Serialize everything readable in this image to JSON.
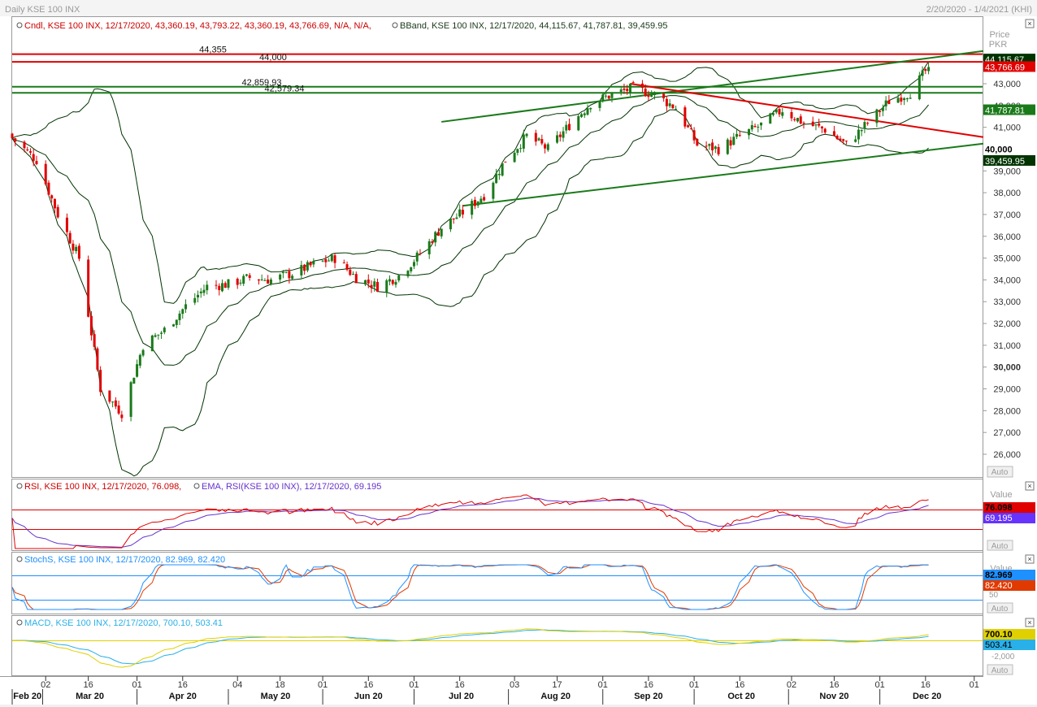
{
  "window": {
    "title": "Daily KSE 100 INX",
    "range": "2/20/2020 - 1/4/2021 (KHI)"
  },
  "colors": {
    "up": "#1a7a1a",
    "down": "#e00000",
    "bband": "#003300",
    "rsi": "#e00000",
    "rsi_ema": "#6633cc",
    "stoch_k": "#1e90ff",
    "stoch_d": "#e03a00",
    "macd": "#e0d000",
    "macd_signal": "#2ab0e8",
    "hline_red": "#e00000",
    "hline_green": "#1a7a1a"
  },
  "price_panel": {
    "legend_candle": "Cndl, KSE 100 INX, 12/17/2020, 43,360.19, 43,793.22, 43,360.19, 43,766.69, N/A, N/A,",
    "legend_bband": "BBand, KSE 100 INX, 12/17/2020, 44,115.67, 41,787.81, 39,459.95",
    "axis_title_1": "Price",
    "axis_title_2": "PKR",
    "auto_label": "Auto",
    "y_ticks": [
      "43,000",
      "42,000",
      "41,000",
      "40,000",
      "39,000",
      "38,000",
      "37,000",
      "36,000",
      "35,000",
      "34,000",
      "33,000",
      "32,000",
      "31,000",
      "30,000",
      "29,000",
      "28,000",
      "27,000",
      "26,000"
    ],
    "y_tick_values": [
      43000,
      42000,
      41000,
      40000,
      39000,
      38000,
      37000,
      36000,
      35000,
      34000,
      33000,
      32000,
      31000,
      30000,
      29000,
      28000,
      27000,
      26000
    ],
    "h_lines": [
      {
        "label": "44,355",
        "value": 44355,
        "color": "red"
      },
      {
        "label": "44,000",
        "value": 44000,
        "color": "red"
      },
      {
        "label": "42,859.93",
        "value": 42859.93,
        "color": "green"
      },
      {
        "label": "42,579.34",
        "value": 42579.34,
        "color": "green"
      }
    ],
    "badges": [
      {
        "text": "44,115.67",
        "value": 44115.67,
        "bg": "#003300"
      },
      {
        "text": "43,766.69",
        "value": 43766.69,
        "bg": "#e00000"
      },
      {
        "text": "41,787.81",
        "value": 41787.81,
        "bg": "#1a7a1a"
      },
      {
        "text": "40,000",
        "value": 40000,
        "bg": "#ffffff"
      },
      {
        "text": "39,459.95",
        "value": 39459.95,
        "bg": "#003300"
      }
    ]
  },
  "rsi_panel": {
    "legend_rsi": "RSI, KSE 100 INX, 12/17/2020, 76.098,",
    "legend_ema": "EMA, RSI(KSE 100 INX), 12/17/2020, 69.195",
    "axis_title": "Value",
    "auto_label": "Auto",
    "badge_rsi": "76.098",
    "badge_ema": "69.195"
  },
  "stoch_panel": {
    "legend": "StochS, KSE 100 INX, 12/17/2020, 82.969, 82.420",
    "axis_title": "Value",
    "tick_50": "50",
    "auto_label": "Auto",
    "badge_k": "82.969",
    "badge_d": "82.420"
  },
  "macd_panel": {
    "legend": "MACD, KSE 100 INX, 12/17/2020, 700.10, 503.41",
    "tick": "-2,000",
    "auto_label": "Auto",
    "badge_macd": "700.10",
    "badge_signal": "503.41"
  },
  "x_axis": {
    "day_ticks": [
      "02",
      "16",
      "01",
      "16",
      "04",
      "18",
      "01",
      "16",
      "01",
      "16",
      "03",
      "17",
      "01",
      "16",
      "01",
      "16",
      "02",
      "16",
      "01",
      "16",
      "01"
    ],
    "months": [
      "Feb 20",
      "Mar 20",
      "Apr 20",
      "May 20",
      "Jun 20",
      "Jul 20",
      "Aug 20",
      "Sep 20",
      "Oct 20",
      "Nov 20",
      "Dec 20"
    ]
  },
  "chart_data": [
    {
      "type": "candlestick",
      "title": "Daily KSE 100 INX",
      "x_range": [
        "2020-02-20",
        "2021-01-04"
      ],
      "y_unit": "PKR",
      "ylim": [
        25000,
        45200
      ],
      "series": [
        {
          "name": "KSE 100 INX (weekly close approx.)",
          "x": [
            "2020-02-20",
            "2020-02-28",
            "2020-03-06",
            "2020-03-13",
            "2020-03-20",
            "2020-03-27",
            "2020-04-03",
            "2020-04-10",
            "2020-04-17",
            "2020-04-24",
            "2020-05-01",
            "2020-05-08",
            "2020-05-15",
            "2020-05-22",
            "2020-05-29",
            "2020-06-05",
            "2020-06-12",
            "2020-06-19",
            "2020-06-26",
            "2020-07-03",
            "2020-07-10",
            "2020-07-17",
            "2020-07-24",
            "2020-07-31",
            "2020-08-07",
            "2020-08-14",
            "2020-08-21",
            "2020-08-28",
            "2020-09-04",
            "2020-09-11",
            "2020-09-18",
            "2020-09-25",
            "2020-10-02",
            "2020-10-09",
            "2020-10-16",
            "2020-10-23",
            "2020-10-30",
            "2020-11-06",
            "2020-11-13",
            "2020-11-20",
            "2020-11-27",
            "2020-12-04",
            "2020-12-11",
            "2020-12-17"
          ],
          "values": [
            40500,
            39500,
            37000,
            35000,
            29000,
            27900,
            31000,
            31700,
            32800,
            33700,
            33800,
            34100,
            34000,
            34300,
            34700,
            35000,
            34100,
            33700,
            34200,
            35200,
            36400,
            37100,
            37900,
            39500,
            40600,
            40000,
            41100,
            42100,
            42500,
            42800,
            42500,
            41900,
            40200,
            40000,
            40600,
            41100,
            41800,
            41200,
            40900,
            40200,
            41200,
            42200,
            42600,
            43766.69
          ]
        }
      ],
      "annotations": [
        "44,355",
        "44,000",
        "42,859.93",
        "42,579.34"
      ]
    },
    {
      "type": "line",
      "title": "RSI, KSE 100 INX",
      "series": [
        {
          "name": "RSI",
          "last": 76.098
        },
        {
          "name": "EMA, RSI(KSE 100 INX)",
          "last": 69.195
        }
      ]
    },
    {
      "type": "line",
      "title": "StochS, KSE 100 INX",
      "series": [
        {
          "name": "StochS %K",
          "last": 82.969
        },
        {
          "name": "StochS %D",
          "last": 82.42
        }
      ]
    },
    {
      "type": "line",
      "title": "MACD, KSE 100 INX",
      "series": [
        {
          "name": "MACD",
          "last": 700.1
        },
        {
          "name": "Signal",
          "last": 503.41
        }
      ]
    }
  ]
}
